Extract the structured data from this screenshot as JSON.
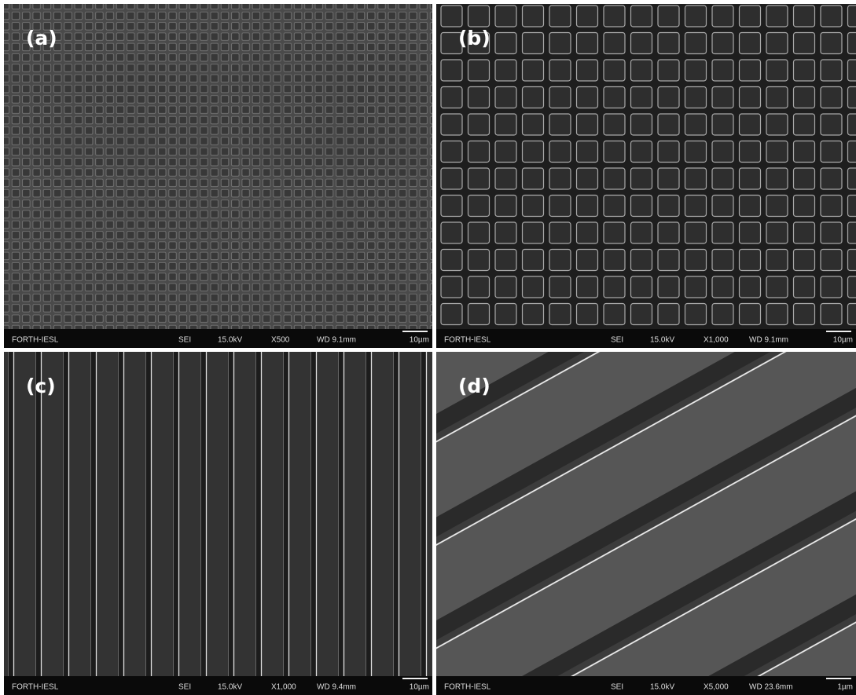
{
  "panels": [
    {
      "label": "(a)",
      "info": {
        "lab": "FORTH-IESL",
        "mode": "SEI",
        "voltage": "15.0kV",
        "magnification": "X500",
        "working_distance": "WD 9.1mm",
        "scale": "10µm"
      }
    },
    {
      "label": "(b)",
      "info": {
        "lab": "FORTH-IESL",
        "mode": "SEI",
        "voltage": "15.0kV",
        "magnification": "X1,000",
        "working_distance": "WD 9.1mm",
        "scale": "10µm"
      }
    },
    {
      "label": "(c)",
      "info": {
        "lab": "FORTH-IESL",
        "mode": "SEI",
        "voltage": "15.0kV",
        "magnification": "X1,000",
        "working_distance": "WD 9.4mm",
        "scale": "10µm"
      }
    },
    {
      "label": "(d)",
      "info": {
        "lab": "FORTH-IESL",
        "mode": "SEI",
        "voltage": "15.0kV",
        "magnification": "X5,000",
        "working_distance": "WD 23.6mm",
        "scale": "1µm"
      }
    }
  ]
}
